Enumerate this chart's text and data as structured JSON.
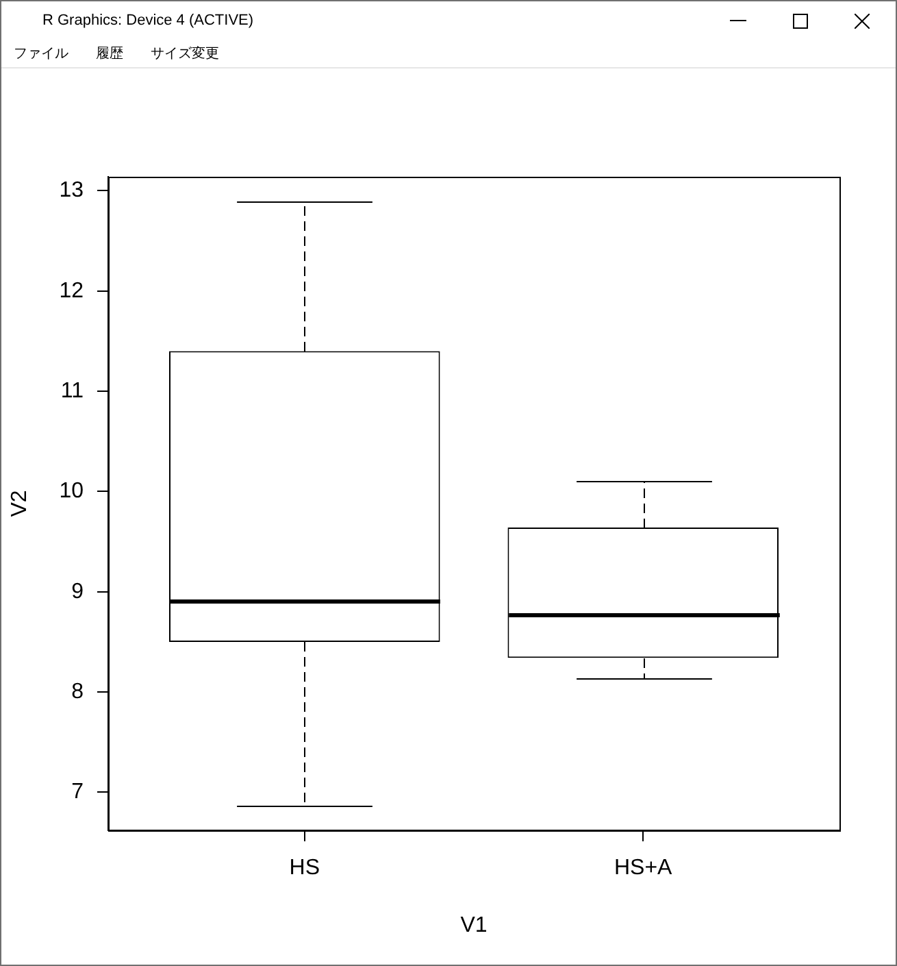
{
  "chart_data": {
    "type": "box",
    "xlabel": "V1",
    "ylabel": "V2",
    "categories": [
      "HS",
      "HS+A"
    ],
    "boxes": [
      {
        "low": 6.86,
        "q1": 8.5,
        "median": 8.9,
        "q3": 11.4,
        "high": 12.9
      },
      {
        "low": 8.14,
        "q1": 8.34,
        "median": 8.77,
        "q3": 9.64,
        "high": 10.1
      }
    ],
    "color": "#000000",
    "ylim": [
      6.62,
      13.14
    ],
    "yticks": [
      7,
      8,
      9,
      10,
      11,
      12,
      13
    ],
    "annotations": [
      "R Graphics: Device 4 (ACTIVE)",
      "ファイル",
      "履歴",
      "サイズ変更"
    ]
  }
}
